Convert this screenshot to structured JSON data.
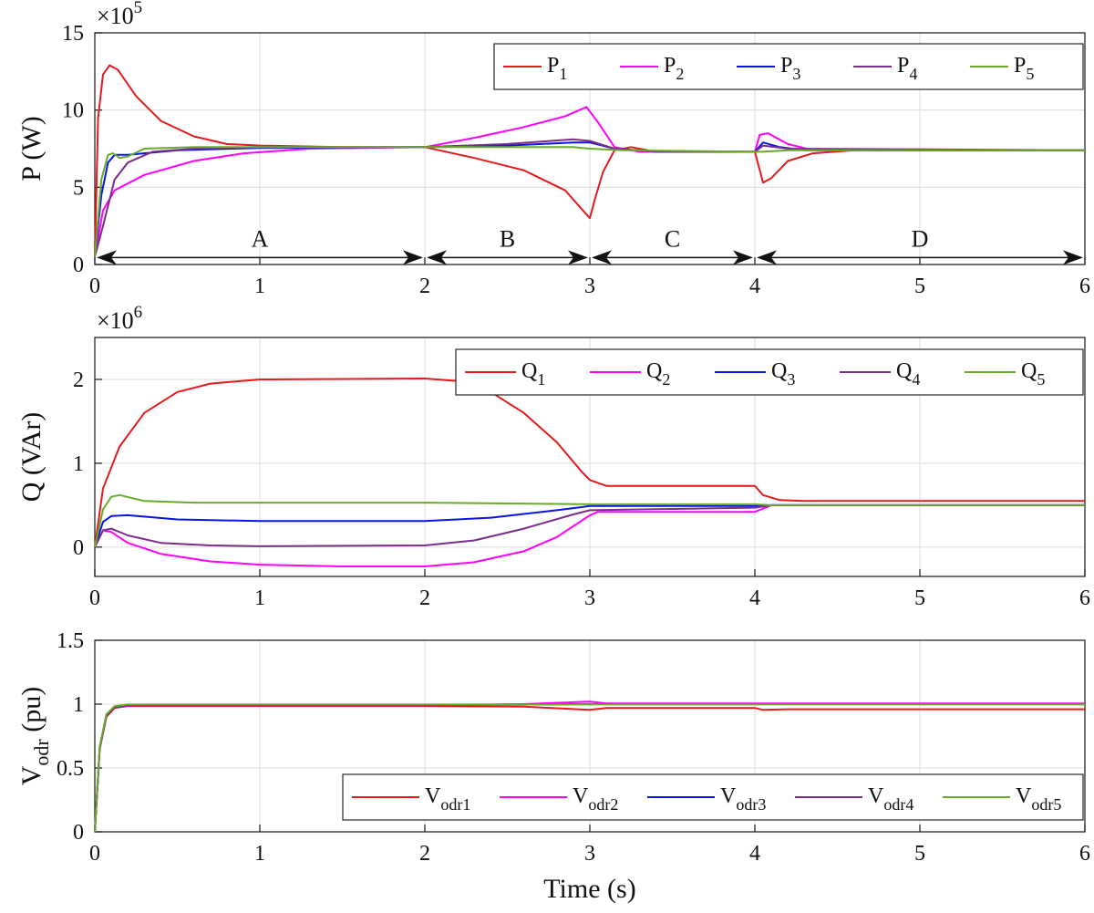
{
  "chart_data": [
    {
      "type": "line",
      "id": "p",
      "ylabel": "P (W)",
      "multiplier_base": "×10",
      "multiplier_exp": "5",
      "xlim": [
        0,
        6
      ],
      "ylim": [
        0,
        15
      ],
      "xticks": [
        "0",
        "1",
        "2",
        "3",
        "4",
        "5",
        "6"
      ],
      "yticks": [
        "0",
        "5",
        "10",
        "15"
      ],
      "grid": true,
      "legend_position": "top-right",
      "series": [
        {
          "name": "P",
          "sub": "1",
          "color": "#e41a1c",
          "points": [
            [
              0,
              0.5
            ],
            [
              0.02,
              9.5
            ],
            [
              0.05,
              12.3
            ],
            [
              0.09,
              12.9
            ],
            [
              0.14,
              12.6
            ],
            [
              0.25,
              10.9
            ],
            [
              0.4,
              9.3
            ],
            [
              0.6,
              8.3
            ],
            [
              0.8,
              7.8
            ],
            [
              1.0,
              7.7
            ],
            [
              1.5,
              7.6
            ],
            [
              2.0,
              7.6
            ],
            [
              2.3,
              6.9
            ],
            [
              2.6,
              6.1
            ],
            [
              2.85,
              4.8
            ],
            [
              3.0,
              3.0
            ],
            [
              3.03,
              4.2
            ],
            [
              3.08,
              6.0
            ],
            [
              3.15,
              7.4
            ],
            [
              3.25,
              7.6
            ],
            [
              3.4,
              7.3
            ],
            [
              4.0,
              7.3
            ],
            [
              4.05,
              5.3
            ],
            [
              4.1,
              5.6
            ],
            [
              4.2,
              6.7
            ],
            [
              4.35,
              7.2
            ],
            [
              4.6,
              7.4
            ],
            [
              6.0,
              7.4
            ]
          ]
        },
        {
          "name": "P",
          "sub": "2",
          "color": "#ff00ff",
          "points": [
            [
              0,
              0.5
            ],
            [
              0.05,
              3.5
            ],
            [
              0.12,
              4.8
            ],
            [
              0.3,
              5.8
            ],
            [
              0.6,
              6.7
            ],
            [
              0.9,
              7.2
            ],
            [
              1.3,
              7.5
            ],
            [
              2.0,
              7.6
            ],
            [
              2.3,
              8.2
            ],
            [
              2.6,
              8.9
            ],
            [
              2.85,
              9.6
            ],
            [
              2.98,
              10.2
            ],
            [
              3.05,
              9.2
            ],
            [
              3.15,
              7.6
            ],
            [
              3.3,
              7.3
            ],
            [
              4.0,
              7.3
            ],
            [
              4.03,
              8.4
            ],
            [
              4.08,
              8.5
            ],
            [
              4.2,
              7.8
            ],
            [
              4.35,
              7.4
            ],
            [
              6.0,
              7.4
            ]
          ]
        },
        {
          "name": "P",
          "sub": "3",
          "color": "#0a14e6",
          "points": [
            [
              0,
              0.5
            ],
            [
              0.04,
              4.5
            ],
            [
              0.08,
              6.6
            ],
            [
              0.12,
              7.1
            ],
            [
              0.2,
              7.1
            ],
            [
              0.5,
              7.4
            ],
            [
              1.0,
              7.55
            ],
            [
              2.0,
              7.6
            ],
            [
              2.5,
              7.7
            ],
            [
              2.9,
              7.9
            ],
            [
              3.0,
              7.9
            ],
            [
              3.15,
              7.5
            ],
            [
              3.4,
              7.3
            ],
            [
              4.0,
              7.3
            ],
            [
              4.05,
              7.9
            ],
            [
              4.15,
              7.6
            ],
            [
              4.3,
              7.4
            ],
            [
              6.0,
              7.4
            ]
          ]
        },
        {
          "name": "P",
          "sub": "4",
          "color": "#7b2d8b",
          "points": [
            [
              0,
              0.5
            ],
            [
              0.05,
              2.5
            ],
            [
              0.12,
              5.5
            ],
            [
              0.2,
              6.6
            ],
            [
              0.35,
              7.3
            ],
            [
              0.6,
              7.5
            ],
            [
              1.0,
              7.6
            ],
            [
              2.0,
              7.6
            ],
            [
              2.5,
              7.8
            ],
            [
              2.9,
              8.1
            ],
            [
              3.0,
              8.0
            ],
            [
              3.15,
              7.5
            ],
            [
              3.4,
              7.3
            ],
            [
              4.0,
              7.3
            ],
            [
              4.05,
              7.7
            ],
            [
              4.2,
              7.5
            ],
            [
              6.0,
              7.4
            ]
          ]
        },
        {
          "name": "P",
          "sub": "5",
          "color": "#6aaa2a",
          "points": [
            [
              0,
              0.5
            ],
            [
              0.04,
              5.5
            ],
            [
              0.08,
              7.1
            ],
            [
              0.11,
              7.2
            ],
            [
              0.15,
              6.9
            ],
            [
              0.2,
              7.0
            ],
            [
              0.3,
              7.5
            ],
            [
              0.6,
              7.6
            ],
            [
              2.0,
              7.6
            ],
            [
              2.5,
              7.6
            ],
            [
              2.9,
              7.6
            ],
            [
              3.0,
              7.5
            ],
            [
              3.2,
              7.4
            ],
            [
              4.0,
              7.3
            ],
            [
              4.05,
              7.3
            ],
            [
              4.2,
              7.4
            ],
            [
              6.0,
              7.4
            ]
          ]
        }
      ],
      "segments": [
        {
          "label": "A",
          "from": 0,
          "to": 2
        },
        {
          "label": "B",
          "from": 2,
          "to": 3
        },
        {
          "label": "C",
          "from": 3,
          "to": 4
        },
        {
          "label": "D",
          "from": 4,
          "to": 6
        }
      ],
      "segment_arrow_y": 0.45
    },
    {
      "type": "line",
      "id": "q",
      "ylabel": "Q (VAr)",
      "multiplier_base": "×10",
      "multiplier_exp": "6",
      "xlim": [
        0,
        6
      ],
      "ylim": [
        -0.35,
        2.5
      ],
      "xticks": [
        "0",
        "1",
        "2",
        "3",
        "4",
        "5",
        "6"
      ],
      "yticks": [
        "0",
        "1",
        "2"
      ],
      "grid": true,
      "legend_position": "top-right",
      "series": [
        {
          "name": "Q",
          "sub": "1",
          "color": "#e41a1c",
          "points": [
            [
              0,
              0
            ],
            [
              0.05,
              0.7
            ],
            [
              0.15,
              1.2
            ],
            [
              0.3,
              1.6
            ],
            [
              0.5,
              1.85
            ],
            [
              0.7,
              1.95
            ],
            [
              1.0,
              2.0
            ],
            [
              2.0,
              2.01
            ],
            [
              2.2,
              1.98
            ],
            [
              2.4,
              1.85
            ],
            [
              2.6,
              1.6
            ],
            [
              2.8,
              1.25
            ],
            [
              2.95,
              0.9
            ],
            [
              3.0,
              0.8
            ],
            [
              3.1,
              0.73
            ],
            [
              4.0,
              0.73
            ],
            [
              4.05,
              0.62
            ],
            [
              4.15,
              0.56
            ],
            [
              4.3,
              0.55
            ],
            [
              6.0,
              0.55
            ]
          ]
        },
        {
          "name": "Q",
          "sub": "2",
          "color": "#ff00ff",
          "points": [
            [
              0,
              0
            ],
            [
              0.05,
              0.2
            ],
            [
              0.1,
              0.18
            ],
            [
              0.2,
              0.05
            ],
            [
              0.4,
              -0.08
            ],
            [
              0.7,
              -0.17
            ],
            [
              1.0,
              -0.21
            ],
            [
              1.5,
              -0.23
            ],
            [
              2.0,
              -0.23
            ],
            [
              2.3,
              -0.18
            ],
            [
              2.6,
              -0.05
            ],
            [
              2.8,
              0.12
            ],
            [
              3.0,
              0.38
            ],
            [
              3.05,
              0.42
            ],
            [
              4.0,
              0.42
            ],
            [
              4.1,
              0.5
            ],
            [
              6.0,
              0.5
            ]
          ]
        },
        {
          "name": "Q",
          "sub": "3",
          "color": "#0a14e6",
          "points": [
            [
              0,
              0
            ],
            [
              0.05,
              0.3
            ],
            [
              0.1,
              0.37
            ],
            [
              0.2,
              0.38
            ],
            [
              0.5,
              0.33
            ],
            [
              1.0,
              0.31
            ],
            [
              2.0,
              0.31
            ],
            [
              2.4,
              0.35
            ],
            [
              2.8,
              0.44
            ],
            [
              3.0,
              0.49
            ],
            [
              4.0,
              0.49
            ],
            [
              4.1,
              0.5
            ],
            [
              6.0,
              0.5
            ]
          ]
        },
        {
          "name": "Q",
          "sub": "4",
          "color": "#7b2d8b",
          "points": [
            [
              0,
              0
            ],
            [
              0.05,
              0.2
            ],
            [
              0.1,
              0.22
            ],
            [
              0.2,
              0.14
            ],
            [
              0.4,
              0.05
            ],
            [
              0.7,
              0.02
            ],
            [
              1.0,
              0.01
            ],
            [
              2.0,
              0.02
            ],
            [
              2.3,
              0.08
            ],
            [
              2.6,
              0.22
            ],
            [
              2.9,
              0.39
            ],
            [
              3.0,
              0.44
            ],
            [
              4.0,
              0.47
            ],
            [
              4.1,
              0.5
            ],
            [
              6.0,
              0.5
            ]
          ]
        },
        {
          "name": "Q",
          "sub": "5",
          "color": "#6aaa2a",
          "points": [
            [
              0,
              0
            ],
            [
              0.05,
              0.45
            ],
            [
              0.1,
              0.6
            ],
            [
              0.15,
              0.62
            ],
            [
              0.3,
              0.55
            ],
            [
              0.6,
              0.53
            ],
            [
              2.0,
              0.53
            ],
            [
              2.5,
              0.52
            ],
            [
              3.0,
              0.51
            ],
            [
              4.0,
              0.51
            ],
            [
              4.1,
              0.5
            ],
            [
              6.0,
              0.5
            ]
          ]
        }
      ]
    },
    {
      "type": "line",
      "id": "v",
      "ylabel": "V",
      "ylabel_sub": "odr",
      "ylabel_unit": " (pu)",
      "xlabel": "Time (s)",
      "xlim": [
        0,
        6
      ],
      "ylim": [
        0,
        1.5
      ],
      "xticks": [
        "0",
        "1",
        "2",
        "3",
        "4",
        "5",
        "6"
      ],
      "yticks": [
        "0",
        "0.5",
        "1",
        "1.5"
      ],
      "grid": true,
      "legend_position": "bottom-right",
      "series": [
        {
          "name": "V",
          "sub": "odr1",
          "color": "#e41a1c",
          "points": [
            [
              0,
              0
            ],
            [
              0.03,
              0.65
            ],
            [
              0.07,
              0.9
            ],
            [
              0.12,
              0.97
            ],
            [
              0.2,
              0.985
            ],
            [
              2.0,
              0.985
            ],
            [
              2.6,
              0.98
            ],
            [
              3.0,
              0.955
            ],
            [
              3.1,
              0.97
            ],
            [
              4.0,
              0.97
            ],
            [
              4.05,
              0.955
            ],
            [
              4.2,
              0.96
            ],
            [
              6.0,
              0.96
            ]
          ]
        },
        {
          "name": "V",
          "sub": "odr2",
          "color": "#ff00ff",
          "points": [
            [
              0,
              0
            ],
            [
              0.03,
              0.66
            ],
            [
              0.07,
              0.91
            ],
            [
              0.12,
              0.98
            ],
            [
              0.2,
              0.99
            ],
            [
              2.0,
              0.99
            ],
            [
              2.6,
              1.0
            ],
            [
              3.0,
              1.02
            ],
            [
              3.1,
              1.005
            ],
            [
              4.0,
              1.005
            ],
            [
              6.0,
              1.005
            ]
          ]
        },
        {
          "name": "V",
          "sub": "odr3",
          "color": "#0a14e6",
          "points": [
            [
              0,
              0
            ],
            [
              0.03,
              0.66
            ],
            [
              0.07,
              0.91
            ],
            [
              0.12,
              0.98
            ],
            [
              0.2,
              0.993
            ],
            [
              2.0,
              0.993
            ],
            [
              3.0,
              1.0
            ],
            [
              6.0,
              1.0
            ]
          ]
        },
        {
          "name": "V",
          "sub": "odr4",
          "color": "#7b2d8b",
          "points": [
            [
              0,
              0
            ],
            [
              0.03,
              0.66
            ],
            [
              0.07,
              0.91
            ],
            [
              0.12,
              0.98
            ],
            [
              0.2,
              0.995
            ],
            [
              2.0,
              0.995
            ],
            [
              3.0,
              1.0
            ],
            [
              6.0,
              1.0
            ]
          ]
        },
        {
          "name": "V",
          "sub": "odr5",
          "color": "#6aaa2a",
          "points": [
            [
              0,
              0
            ],
            [
              0.03,
              0.67
            ],
            [
              0.07,
              0.92
            ],
            [
              0.12,
              0.985
            ],
            [
              0.2,
              0.997
            ],
            [
              2.0,
              0.997
            ],
            [
              3.0,
              0.997
            ],
            [
              6.0,
              0.997
            ]
          ]
        }
      ]
    }
  ]
}
